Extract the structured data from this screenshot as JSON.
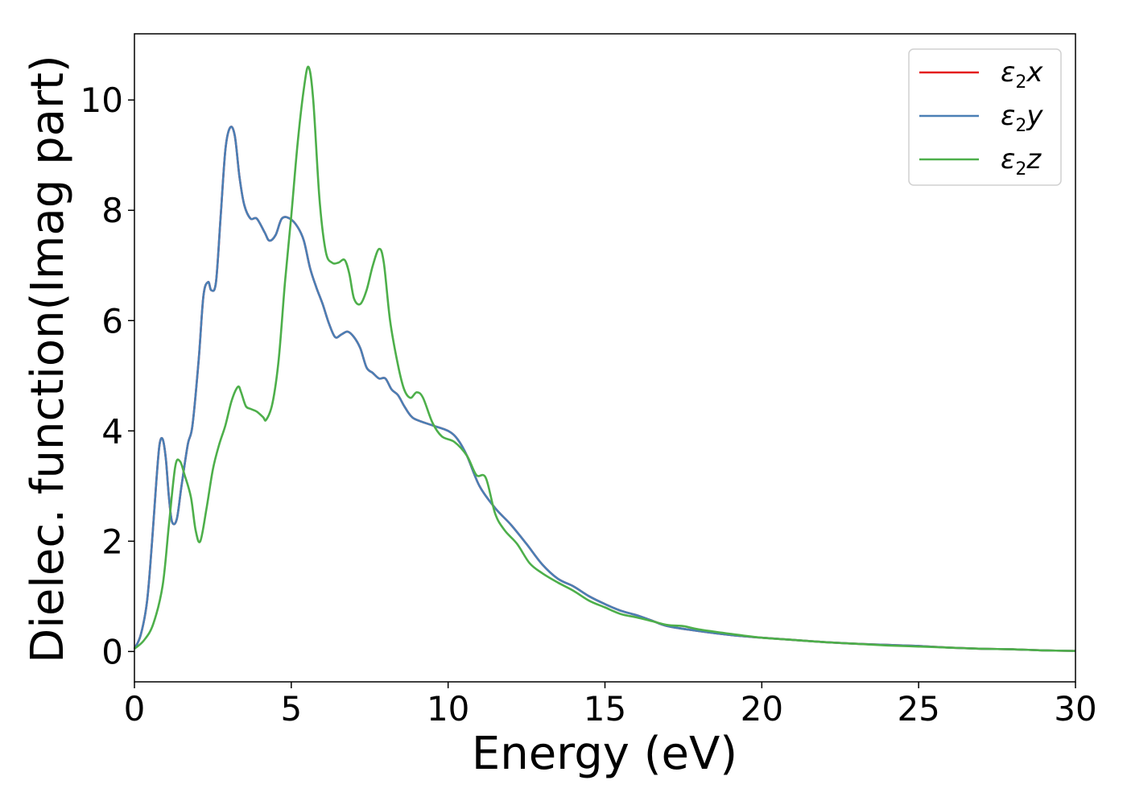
{
  "chart_data": {
    "type": "line",
    "title": "",
    "xlabel": "Energy (eV)",
    "ylabel": "Dielec. function(Imag part)",
    "xlim": [
      0,
      30
    ],
    "ylim": [
      -0.55,
      11.2
    ],
    "xticks": [
      "0",
      "5",
      "10",
      "15",
      "20",
      "25",
      "30"
    ],
    "yticks": [
      "0",
      "2",
      "4",
      "6",
      "8",
      "10"
    ],
    "grid": false,
    "legend_position": "top-right",
    "series": [
      {
        "name": "ε2x",
        "name_base": "ε",
        "name_sub": "2",
        "name_tail": "x",
        "color": "#e41a1c",
        "x": [
          0,
          0.2,
          0.4,
          0.55,
          0.7,
          0.8,
          0.9,
          1.0,
          1.1,
          1.2,
          1.35,
          1.5,
          1.7,
          1.85,
          2.05,
          2.2,
          2.35,
          2.45,
          2.6,
          2.75,
          2.9,
          3.05,
          3.2,
          3.35,
          3.5,
          3.7,
          3.9,
          4.15,
          4.3,
          4.5,
          4.7,
          4.95,
          5.2,
          5.4,
          5.6,
          5.8,
          6.0,
          6.2,
          6.4,
          6.6,
          6.8,
          7.0,
          7.2,
          7.4,
          7.6,
          7.8,
          8.0,
          8.2,
          8.4,
          8.6,
          8.8,
          9.0,
          9.5,
          10.0,
          10.3,
          10.6,
          11.0,
          11.5,
          12.0,
          12.5,
          13.0,
          13.5,
          14.0,
          14.5,
          15.0,
          15.5,
          16.0,
          16.5,
          17.0,
          18.0,
          19.0,
          20.0,
          21.0,
          22.0,
          23.0,
          24.0,
          25.0,
          26.0,
          27.0,
          28.0,
          29.0,
          30.0
        ],
        "values": [
          0.05,
          0.3,
          0.9,
          1.9,
          3.1,
          3.75,
          3.85,
          3.5,
          2.8,
          2.35,
          2.4,
          3.0,
          3.75,
          4.1,
          5.3,
          6.45,
          6.7,
          6.55,
          6.7,
          7.9,
          9.1,
          9.5,
          9.35,
          8.6,
          8.1,
          7.85,
          7.85,
          7.6,
          7.45,
          7.55,
          7.85,
          7.85,
          7.7,
          7.45,
          6.95,
          6.6,
          6.3,
          5.95,
          5.7,
          5.75,
          5.8,
          5.7,
          5.5,
          5.15,
          5.05,
          4.95,
          4.95,
          4.75,
          4.65,
          4.45,
          4.28,
          4.2,
          4.1,
          4.0,
          3.85,
          3.55,
          3.0,
          2.6,
          2.3,
          1.95,
          1.58,
          1.32,
          1.18,
          1.0,
          0.86,
          0.74,
          0.66,
          0.56,
          0.46,
          0.37,
          0.3,
          0.25,
          0.21,
          0.17,
          0.14,
          0.12,
          0.1,
          0.07,
          0.05,
          0.04,
          0.02,
          0.01
        ]
      },
      {
        "name": "ε2y",
        "name_base": "ε",
        "name_sub": "2",
        "name_tail": "y",
        "color": "#4a7fb5",
        "x": [
          0,
          0.2,
          0.4,
          0.55,
          0.7,
          0.8,
          0.9,
          1.0,
          1.1,
          1.2,
          1.35,
          1.5,
          1.7,
          1.85,
          2.05,
          2.2,
          2.35,
          2.45,
          2.6,
          2.75,
          2.9,
          3.05,
          3.2,
          3.35,
          3.5,
          3.7,
          3.9,
          4.15,
          4.3,
          4.5,
          4.7,
          4.95,
          5.2,
          5.4,
          5.6,
          5.8,
          6.0,
          6.2,
          6.4,
          6.6,
          6.8,
          7.0,
          7.2,
          7.4,
          7.6,
          7.8,
          8.0,
          8.2,
          8.4,
          8.6,
          8.8,
          9.0,
          9.5,
          10.0,
          10.3,
          10.6,
          11.0,
          11.5,
          12.0,
          12.5,
          13.0,
          13.5,
          14.0,
          14.5,
          15.0,
          15.5,
          16.0,
          16.5,
          17.0,
          18.0,
          19.0,
          20.0,
          21.0,
          22.0,
          23.0,
          24.0,
          25.0,
          26.0,
          27.0,
          28.0,
          29.0,
          30.0
        ],
        "values": [
          0.05,
          0.3,
          0.9,
          1.9,
          3.1,
          3.75,
          3.85,
          3.5,
          2.8,
          2.35,
          2.4,
          3.0,
          3.75,
          4.1,
          5.3,
          6.45,
          6.7,
          6.55,
          6.7,
          7.9,
          9.1,
          9.5,
          9.35,
          8.6,
          8.1,
          7.85,
          7.85,
          7.6,
          7.45,
          7.55,
          7.85,
          7.85,
          7.7,
          7.45,
          6.95,
          6.6,
          6.3,
          5.95,
          5.7,
          5.75,
          5.8,
          5.7,
          5.5,
          5.15,
          5.05,
          4.95,
          4.95,
          4.75,
          4.65,
          4.45,
          4.28,
          4.2,
          4.1,
          4.0,
          3.85,
          3.55,
          3.0,
          2.6,
          2.3,
          1.95,
          1.58,
          1.32,
          1.18,
          1.0,
          0.86,
          0.74,
          0.66,
          0.56,
          0.46,
          0.37,
          0.3,
          0.25,
          0.21,
          0.17,
          0.14,
          0.12,
          0.1,
          0.07,
          0.05,
          0.04,
          0.02,
          0.01
        ]
      },
      {
        "name": "ε2z",
        "name_base": "ε",
        "name_sub": "2",
        "name_tail": "z",
        "color": "#4daf4a",
        "x": [
          0,
          0.3,
          0.6,
          0.9,
          1.1,
          1.3,
          1.45,
          1.6,
          1.8,
          1.95,
          2.1,
          2.3,
          2.5,
          2.7,
          2.9,
          3.1,
          3.3,
          3.4,
          3.55,
          3.7,
          3.9,
          4.1,
          4.2,
          4.4,
          4.6,
          4.8,
          5.0,
          5.2,
          5.4,
          5.55,
          5.7,
          5.9,
          6.1,
          6.3,
          6.5,
          6.7,
          6.85,
          7.0,
          7.2,
          7.4,
          7.6,
          7.8,
          7.95,
          8.15,
          8.4,
          8.6,
          8.8,
          9.0,
          9.2,
          9.5,
          9.8,
          10.2,
          10.6,
          10.9,
          11.2,
          11.5,
          11.8,
          12.2,
          12.6,
          13.0,
          13.5,
          14.0,
          14.5,
          15.0,
          15.5,
          16.0,
          16.5,
          17.0,
          17.5,
          18.0,
          19.0,
          20.0,
          21.0,
          22.0,
          23.0,
          24.0,
          25.0,
          26.0,
          27.0,
          28.0,
          29.0,
          30.0
        ],
        "values": [
          0.05,
          0.2,
          0.5,
          1.2,
          2.3,
          3.35,
          3.45,
          3.2,
          2.8,
          2.2,
          2.0,
          2.6,
          3.3,
          3.75,
          4.1,
          4.55,
          4.8,
          4.7,
          4.45,
          4.4,
          4.35,
          4.25,
          4.2,
          4.5,
          5.3,
          6.7,
          7.9,
          9.2,
          10.2,
          10.6,
          10.0,
          8.2,
          7.25,
          7.05,
          7.05,
          7.1,
          6.85,
          6.4,
          6.3,
          6.55,
          7.0,
          7.3,
          7.05,
          6.0,
          5.2,
          4.75,
          4.6,
          4.7,
          4.6,
          4.15,
          3.9,
          3.8,
          3.55,
          3.2,
          3.15,
          2.5,
          2.2,
          1.95,
          1.6,
          1.42,
          1.25,
          1.1,
          0.92,
          0.8,
          0.68,
          0.62,
          0.55,
          0.48,
          0.46,
          0.4,
          0.32,
          0.25,
          0.21,
          0.17,
          0.14,
          0.11,
          0.09,
          0.07,
          0.05,
          0.04,
          0.02,
          0.01
        ]
      }
    ]
  }
}
